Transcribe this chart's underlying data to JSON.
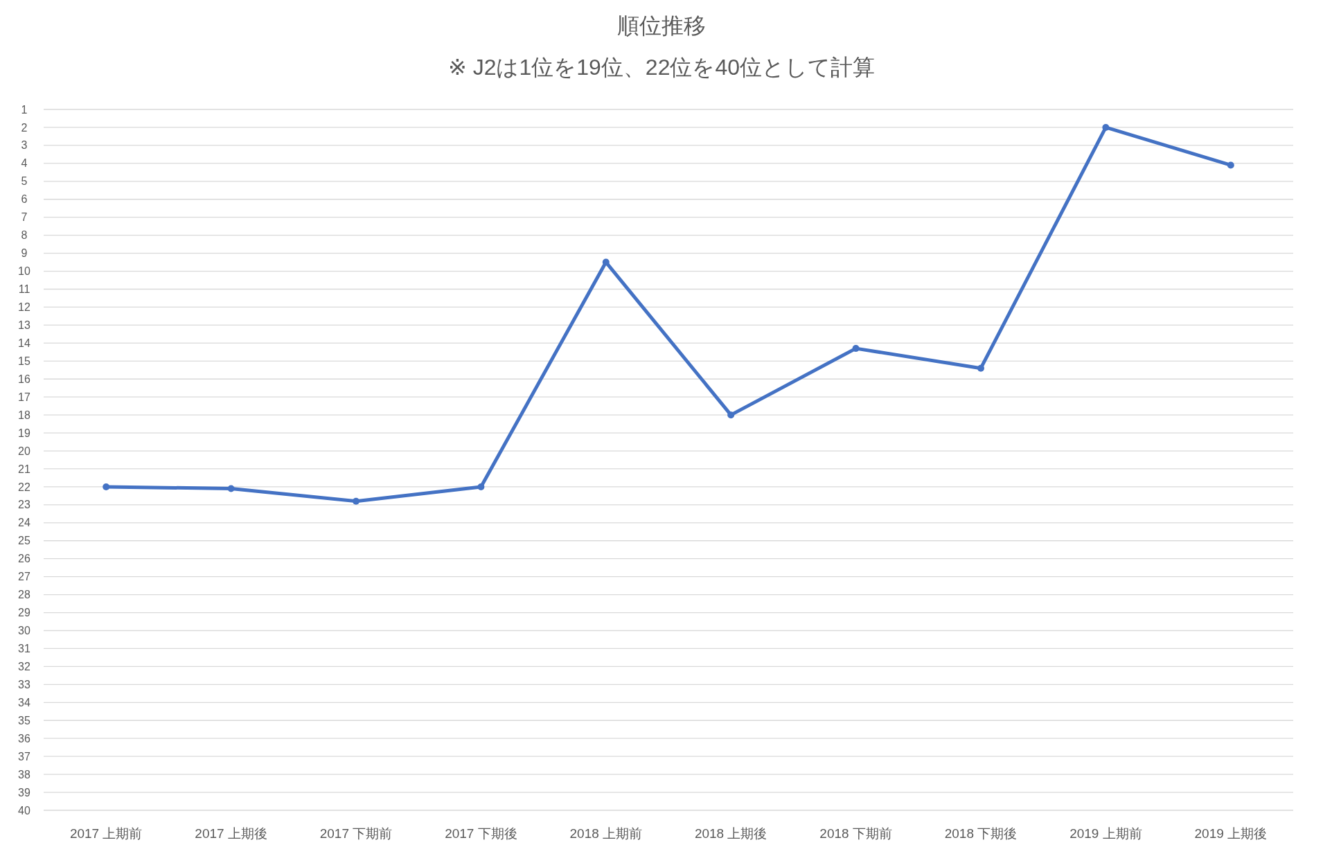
{
  "chart_data": {
    "type": "line",
    "title": "順位推移",
    "subtitle": "※ J2は1位を19位、22位を40位として計算",
    "categories": [
      "2017 上期前",
      "2017 上期後",
      "2017 下期前",
      "2017 下期後",
      "2018 上期前",
      "2018 上期後",
      "2018 下期前",
      "2018 下期後",
      "2019 上期前",
      "2019 上期後"
    ],
    "series": [
      {
        "color": "#4472c4",
        "values": [
          22,
          22.1,
          22.8,
          22,
          9.5,
          18,
          14.3,
          15.4,
          2,
          4.1
        ]
      }
    ],
    "ylim": [
      40,
      1
    ],
    "yticks": [
      1,
      2,
      3,
      4,
      5,
      6,
      7,
      8,
      9,
      10,
      11,
      12,
      13,
      14,
      15,
      16,
      17,
      18,
      19,
      20,
      21,
      22,
      23,
      24,
      25,
      26,
      27,
      28,
      29,
      30,
      31,
      32,
      33,
      34,
      35,
      36,
      37,
      38,
      39,
      40
    ],
    "grid": "y",
    "marker": "circle"
  }
}
